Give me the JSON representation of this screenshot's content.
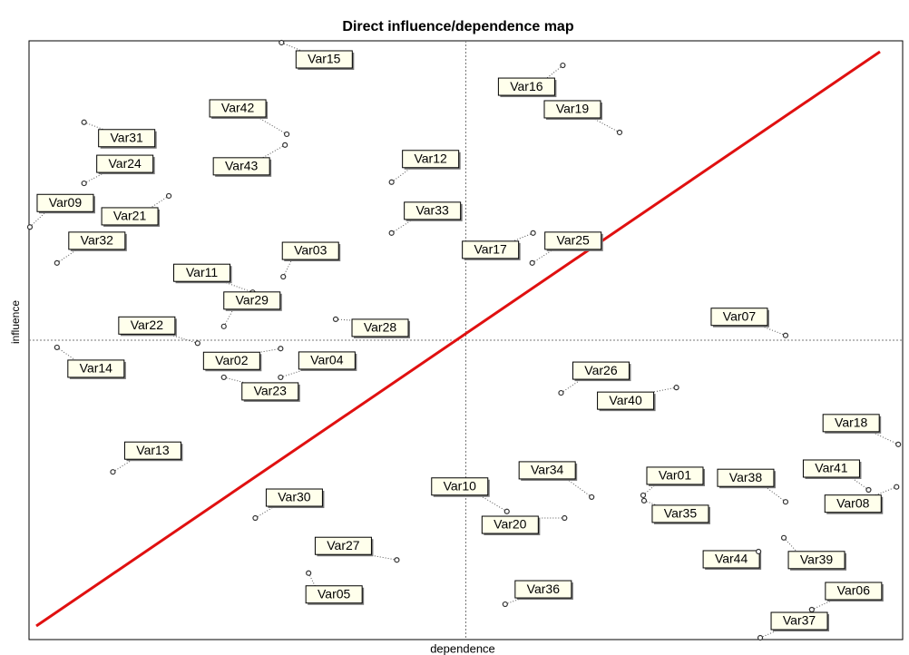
{
  "chart_data": {
    "type": "scatter",
    "title": "Direct influence/dependence map",
    "xlabel": "dependence",
    "ylabel": "influence",
    "labels": [
      "Var15",
      "Var16",
      "Var19",
      "Var42",
      "Var31",
      "Var43",
      "Var24",
      "Var12",
      "Var09",
      "Var21",
      "Var33",
      "Var32",
      "Var17",
      "Var25",
      "Var03",
      "Var11",
      "Var29",
      "Var22",
      "Var28",
      "Var07",
      "Var14",
      "Var02",
      "Var04",
      "Var23",
      "Var26",
      "Var40",
      "Var18",
      "Var13",
      "Var41",
      "Var08",
      "Var34",
      "Var01",
      "Var38",
      "Var10",
      "Var35",
      "Var30",
      "Var20",
      "Var27",
      "Var44",
      "Var39",
      "Var05",
      "Var36",
      "Var06",
      "Var37"
    ],
    "x": [
      28.9,
      61.1,
      67.6,
      29.5,
      6.3,
      29.3,
      6.3,
      41.5,
      0.1,
      16.0,
      41.5,
      3.2,
      57.7,
      57.6,
      29.1,
      25.6,
      22.3,
      19.3,
      35.1,
      86.6,
      3.2,
      28.8,
      28.8,
      22.3,
      60.9,
      74.1,
      99.5,
      9.6,
      96.1,
      99.3,
      64.4,
      70.3,
      86.6,
      54.7,
      70.4,
      25.9,
      61.3,
      42.1,
      83.5,
      86.4,
      32.0,
      54.5,
      89.6,
      83.7
    ],
    "values": [
      99.7,
      95.9,
      84.7,
      84.4,
      86.4,
      82.6,
      76.2,
      76.4,
      68.9,
      74.1,
      67.9,
      62.9,
      67.9,
      62.9,
      60.6,
      58.0,
      52.3,
      49.5,
      53.5,
      50.8,
      48.8,
      48.6,
      43.8,
      43.8,
      41.2,
      42.1,
      32.6,
      28.0,
      25.0,
      25.5,
      23.8,
      24.1,
      23.0,
      21.4,
      23.2,
      20.3,
      20.3,
      13.3,
      14.7,
      17.0,
      11.1,
      5.9,
      5.0,
      0.3
    ],
    "xlim": [
      0,
      100
    ],
    "ylim": [
      0,
      100
    ]
  }
}
